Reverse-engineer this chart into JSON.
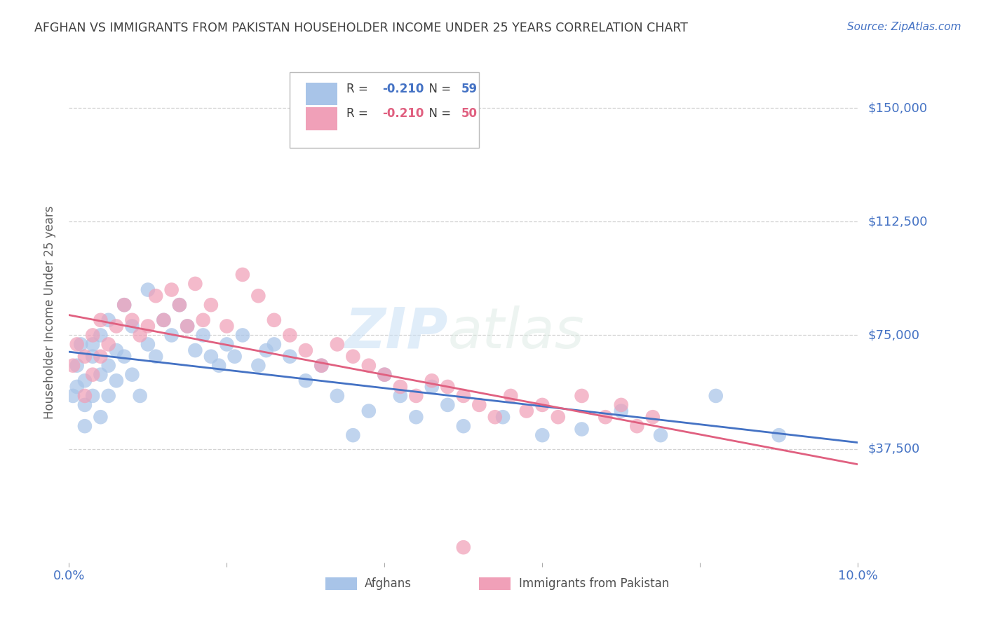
{
  "title": "AFGHAN VS IMMIGRANTS FROM PAKISTAN HOUSEHOLDER INCOME UNDER 25 YEARS CORRELATION CHART",
  "source": "Source: ZipAtlas.com",
  "ylabel": "Householder Income Under 25 years",
  "xlim": [
    0.0,
    0.1
  ],
  "ylim": [
    0,
    165000
  ],
  "yticks": [
    37500,
    75000,
    112500,
    150000
  ],
  "ytick_labels": [
    "$37,500",
    "$75,000",
    "$112,500",
    "$150,000"
  ],
  "xticks": [
    0.0,
    0.02,
    0.04,
    0.06,
    0.08,
    0.1
  ],
  "xtick_labels": [
    "0.0%",
    "",
    "",
    "",
    "",
    "10.0%"
  ],
  "afghans": {
    "color": "#a8c4e8",
    "line_color": "#4472c4",
    "x": [
      0.0005,
      0.001,
      0.001,
      0.0015,
      0.002,
      0.002,
      0.002,
      0.003,
      0.003,
      0.003,
      0.004,
      0.004,
      0.004,
      0.005,
      0.005,
      0.005,
      0.006,
      0.006,
      0.007,
      0.007,
      0.008,
      0.008,
      0.009,
      0.01,
      0.01,
      0.011,
      0.012,
      0.013,
      0.014,
      0.015,
      0.016,
      0.017,
      0.018,
      0.019,
      0.02,
      0.021,
      0.022,
      0.024,
      0.025,
      0.026,
      0.028,
      0.03,
      0.032,
      0.034,
      0.036,
      0.038,
      0.04,
      0.042,
      0.044,
      0.046,
      0.048,
      0.05,
      0.055,
      0.06,
      0.065,
      0.07,
      0.075,
      0.082,
      0.09
    ],
    "y": [
      55000,
      65000,
      58000,
      72000,
      60000,
      52000,
      45000,
      68000,
      72000,
      55000,
      75000,
      62000,
      48000,
      80000,
      65000,
      55000,
      70000,
      60000,
      85000,
      68000,
      78000,
      62000,
      55000,
      90000,
      72000,
      68000,
      80000,
      75000,
      85000,
      78000,
      70000,
      75000,
      68000,
      65000,
      72000,
      68000,
      75000,
      65000,
      70000,
      72000,
      68000,
      60000,
      65000,
      55000,
      42000,
      50000,
      62000,
      55000,
      48000,
      58000,
      52000,
      45000,
      48000,
      42000,
      44000,
      50000,
      42000,
      55000,
      42000
    ]
  },
  "pakistan": {
    "color": "#f0a0b8",
    "line_color": "#e06080",
    "x": [
      0.0005,
      0.001,
      0.002,
      0.002,
      0.003,
      0.003,
      0.004,
      0.004,
      0.005,
      0.006,
      0.007,
      0.008,
      0.009,
      0.01,
      0.011,
      0.012,
      0.013,
      0.014,
      0.015,
      0.016,
      0.017,
      0.018,
      0.02,
      0.022,
      0.024,
      0.026,
      0.028,
      0.03,
      0.032,
      0.034,
      0.036,
      0.038,
      0.04,
      0.042,
      0.044,
      0.046,
      0.048,
      0.05,
      0.052,
      0.054,
      0.056,
      0.058,
      0.06,
      0.062,
      0.065,
      0.068,
      0.07,
      0.072,
      0.074,
      0.05
    ],
    "y": [
      65000,
      72000,
      68000,
      55000,
      75000,
      62000,
      80000,
      68000,
      72000,
      78000,
      85000,
      80000,
      75000,
      78000,
      88000,
      80000,
      90000,
      85000,
      78000,
      92000,
      80000,
      85000,
      78000,
      95000,
      88000,
      80000,
      75000,
      70000,
      65000,
      72000,
      68000,
      65000,
      62000,
      58000,
      55000,
      60000,
      58000,
      55000,
      52000,
      48000,
      55000,
      50000,
      52000,
      48000,
      55000,
      48000,
      52000,
      45000,
      48000,
      5000
    ]
  },
  "watermark_zip": "ZIP",
  "watermark_atlas": "atlas",
  "background_color": "#ffffff",
  "grid_color": "#c8c8c8",
  "title_color": "#404040",
  "axis_label_color": "#606060",
  "tick_color": "#4472c4",
  "source_color": "#4472c4"
}
